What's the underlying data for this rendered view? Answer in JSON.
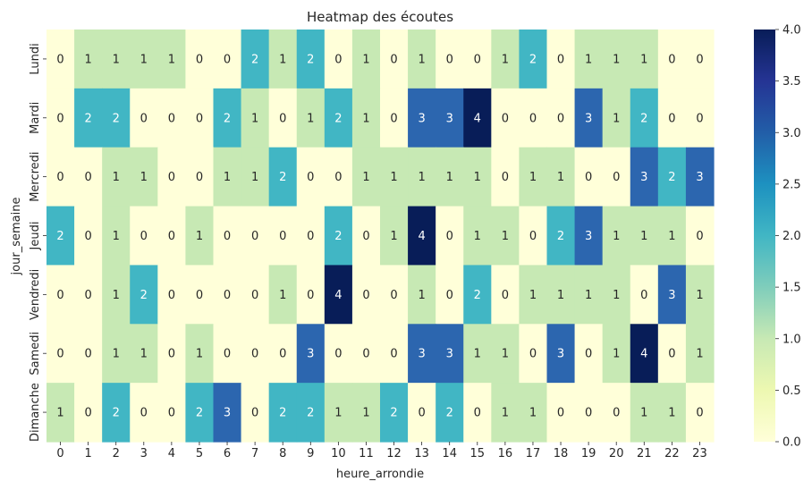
{
  "chart_data": {
    "type": "heatmap",
    "title": "Heatmap des écoutes",
    "xlabel": "heure_arrondie",
    "ylabel": "jour_semaine",
    "x": [
      "0",
      "1",
      "2",
      "3",
      "4",
      "5",
      "6",
      "7",
      "8",
      "9",
      "10",
      "11",
      "12",
      "13",
      "14",
      "15",
      "16",
      "17",
      "18",
      "19",
      "20",
      "21",
      "22",
      "23"
    ],
    "y": [
      "Lundi",
      "Mardi",
      "Mercredi",
      "Jeudi",
      "Vendredi",
      "Samedi",
      "Dimanche"
    ],
    "values": [
      [
        0,
        1,
        1,
        1,
        1,
        0,
        0,
        2,
        1,
        2,
        0,
        1,
        0,
        1,
        0,
        0,
        1,
        2,
        0,
        1,
        1,
        1,
        0,
        0
      ],
      [
        0,
        2,
        2,
        0,
        0,
        0,
        2,
        1,
        0,
        1,
        2,
        1,
        0,
        3,
        3,
        4,
        0,
        0,
        0,
        3,
        1,
        2,
        0,
        0
      ],
      [
        0,
        0,
        1,
        1,
        0,
        0,
        1,
        1,
        2,
        0,
        0,
        1,
        1,
        1,
        1,
        1,
        0,
        1,
        1,
        0,
        0,
        3,
        2,
        3
      ],
      [
        2,
        0,
        1,
        0,
        0,
        1,
        0,
        0,
        0,
        0,
        2,
        0,
        1,
        4,
        0,
        1,
        1,
        0,
        2,
        3,
        1,
        1,
        1,
        0
      ],
      [
        0,
        0,
        1,
        2,
        0,
        0,
        0,
        0,
        1,
        0,
        4,
        0,
        0,
        1,
        0,
        2,
        0,
        1,
        1,
        1,
        1,
        0,
        3,
        1
      ],
      [
        0,
        0,
        1,
        1,
        0,
        1,
        0,
        0,
        0,
        3,
        0,
        0,
        0,
        3,
        3,
        1,
        1,
        0,
        3,
        0,
        1,
        4,
        0,
        1
      ],
      [
        1,
        0,
        2,
        0,
        0,
        2,
        3,
        0,
        2,
        2,
        1,
        1,
        2,
        0,
        2,
        0,
        1,
        1,
        0,
        0,
        0,
        1,
        1,
        0
      ]
    ],
    "colorbar": {
      "min": 0,
      "max": 4,
      "ticks": [
        "0.0",
        "0.5",
        "1.0",
        "1.5",
        "2.0",
        "2.5",
        "3.0",
        "3.5",
        "4.0"
      ]
    },
    "colors": {
      "0": "#ffffd9",
      "1": "#c7e9b4",
      "2": "#41b6c4",
      "3": "#2c66af",
      "4": "#081d58"
    },
    "colormap": "YlGnBu",
    "legend": "colorbar-right"
  }
}
